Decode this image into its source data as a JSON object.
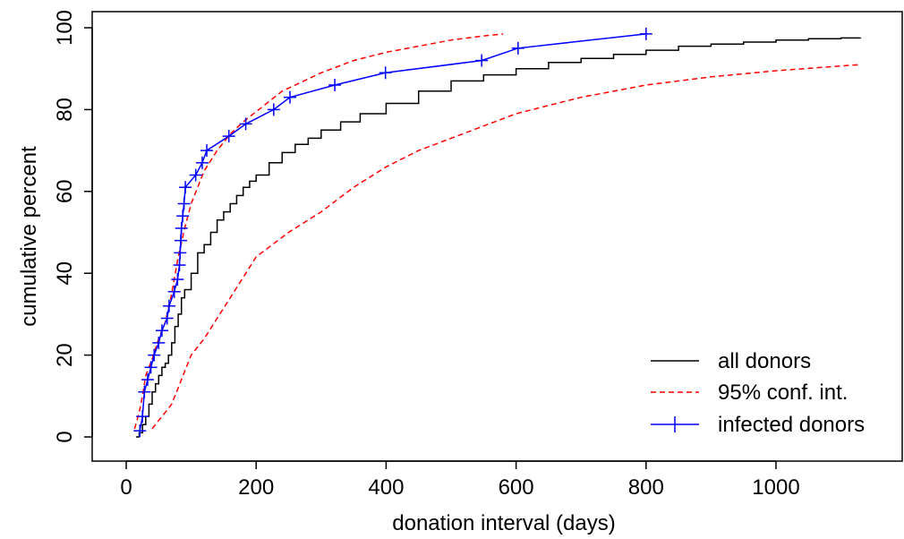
{
  "chart_data": {
    "type": "line",
    "xlabel": "donation interval (days)",
    "ylabel": "cumulative percent",
    "xlim": [
      0,
      1130
    ],
    "ylim": [
      0,
      100
    ],
    "x_ticks": [
      0,
      200,
      400,
      600,
      800,
      1000
    ],
    "y_ticks": [
      0,
      20,
      40,
      60,
      80,
      100
    ],
    "grid": false,
    "legend_position": "bottom-right",
    "series": [
      {
        "name": "all donors",
        "color": "#000000",
        "style": "solid-step",
        "x": [
          15,
          20,
          25,
          30,
          35,
          40,
          45,
          50,
          55,
          60,
          65,
          70,
          75,
          80,
          85,
          90,
          100,
          110,
          120,
          130,
          140,
          150,
          160,
          170,
          180,
          190,
          200,
          220,
          240,
          260,
          280,
          300,
          330,
          360,
          400,
          450,
          500,
          550,
          600,
          650,
          700,
          750,
          800,
          850,
          900,
          950,
          1000,
          1050,
          1100,
          1130
        ],
        "values": [
          0,
          1,
          3,
          5,
          8,
          11,
          13,
          15,
          17,
          18,
          20,
          23,
          27,
          30,
          34,
          36,
          40,
          45,
          47,
          50,
          53,
          55,
          57,
          59,
          61,
          62.5,
          64,
          67,
          69.5,
          71.5,
          73,
          75,
          77,
          79,
          81.5,
          84.5,
          87,
          88.5,
          90,
          91.5,
          92.5,
          93.5,
          94.5,
          95.5,
          96,
          96.5,
          97,
          97.3,
          97.5,
          97.6
        ]
      },
      {
        "name": "95% conf. int.",
        "color": "#ff0000",
        "style": "dashed",
        "x": [
          13,
          20,
          25,
          30,
          40,
          50,
          60,
          70,
          80,
          90,
          100,
          120,
          140,
          160,
          180,
          200,
          220,
          240,
          260,
          300,
          350,
          400,
          450,
          500,
          550,
          580
        ],
        "values": [
          2,
          6,
          10,
          15,
          19,
          24,
          28,
          35,
          44,
          51,
          57,
          65,
          70,
          74,
          77,
          79.5,
          82,
          84.5,
          86,
          89,
          92,
          94,
          95.5,
          97,
          98,
          98.5
        ]
      },
      {
        "name": "95% conf. int.",
        "color": "#ff0000",
        "style": "dashed",
        "legend": false,
        "x": [
          40,
          50,
          60,
          70,
          80,
          90,
          100,
          120,
          140,
          160,
          180,
          200,
          250,
          300,
          350,
          400,
          450,
          500,
          550,
          600,
          650,
          700,
          800,
          900,
          1000,
          1130
        ],
        "values": [
          2,
          4,
          6,
          8,
          12,
          16,
          20,
          24,
          29,
          34,
          39,
          44,
          50,
          55,
          61,
          66,
          70,
          73,
          76,
          79,
          81,
          83,
          86,
          88,
          89.5,
          91
        ]
      },
      {
        "name": "infected donors",
        "color": "#0000ff",
        "style": "line-plus",
        "x": [
          21,
          25,
          28,
          33,
          38,
          43,
          50,
          55,
          63,
          66,
          74,
          79,
          82,
          83,
          84,
          85,
          87,
          89,
          91,
          107,
          117,
          124,
          158,
          184,
          227,
          252,
          321,
          399,
          547,
          603,
          800
        ],
        "values": [
          1.5,
          5,
          11,
          14,
          17,
          20,
          23,
          26,
          29,
          32,
          35.5,
          38.5,
          42,
          45,
          48,
          51,
          54,
          57,
          61,
          64,
          67,
          70,
          73.5,
          76.5,
          80,
          83,
          86,
          89,
          92,
          95,
          98.5
        ]
      }
    ]
  }
}
